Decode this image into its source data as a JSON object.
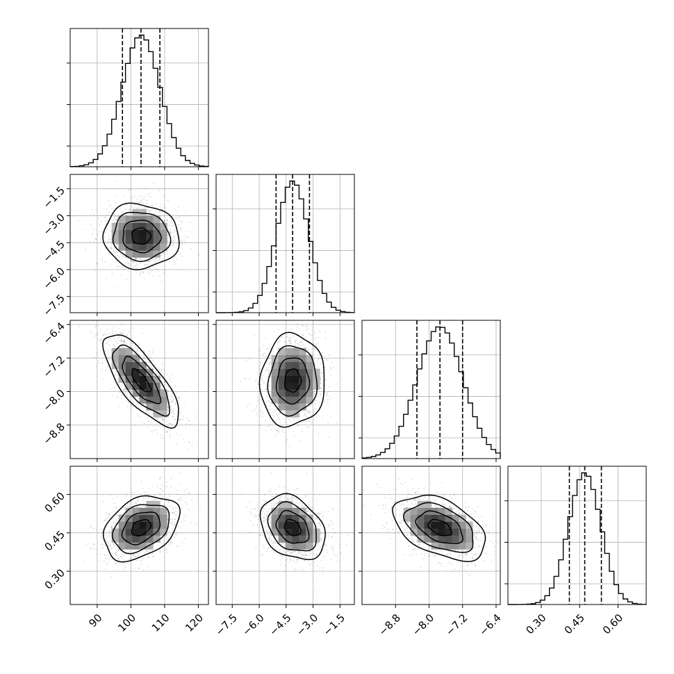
{
  "chart_data": {
    "type": "corner",
    "grid": true,
    "params": [
      {
        "range": [
          82,
          123
        ],
        "ticks": [
          90,
          100,
          110,
          120
        ],
        "tick_labels": [
          "90",
          "100",
          "110",
          "120"
        ],
        "quantiles": [
          97.5,
          103.0,
          108.6
        ],
        "mean": 103.0,
        "sd": 5.6
      },
      {
        "range": [
          -8.4,
          -0.7
        ],
        "ticks": [
          -7.5,
          -6.0,
          -4.5,
          -3.0,
          -1.5
        ],
        "tick_labels": [
          "−7.5",
          "−6.0",
          "−4.5",
          "−3.0",
          "−1.5"
        ],
        "quantiles": [
          -5.06,
          -4.14,
          -3.2
        ],
        "mean": -4.14,
        "sd": 0.9
      },
      {
        "range": [
          -9.6,
          -6.3
        ],
        "ticks": [
          -8.8,
          -8.0,
          -7.2,
          -6.4
        ],
        "tick_labels": [
          "−8.8",
          "−8.0",
          "−7.2",
          "−6.4"
        ],
        "quantiles": [
          -8.29,
          -7.74,
          -7.2
        ],
        "mean": -7.74,
        "sd": 0.55
      },
      {
        "range": [
          0.17,
          0.71
        ],
        "ticks": [
          0.3,
          0.45,
          0.6
        ],
        "tick_labels": [
          "0.30",
          "0.45",
          "0.60"
        ],
        "quantiles": [
          0.41,
          0.47,
          0.535
        ],
        "mean": 0.47,
        "sd": 0.063
      }
    ],
    "correlations": [
      {
        "i": 1,
        "j": 0,
        "r": -0.05
      },
      {
        "i": 2,
        "j": 0,
        "r": -0.75
      },
      {
        "i": 2,
        "j": 1,
        "r": 0.05
      },
      {
        "i": 3,
        "j": 0,
        "r": 0.35
      },
      {
        "i": 3,
        "j": 1,
        "r": -0.3
      },
      {
        "i": 3,
        "j": 2,
        "r": -0.45
      }
    ],
    "contour_levels": [
      0.5,
      1.0,
      1.5,
      2.0
    ],
    "hist_bins": 30
  }
}
